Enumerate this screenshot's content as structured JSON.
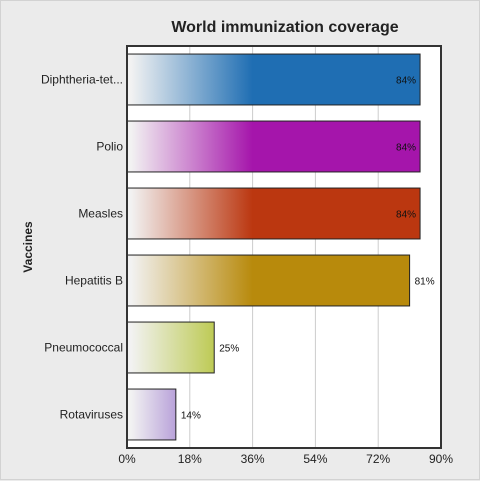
{
  "chart_data": {
    "type": "bar",
    "orientation": "horizontal",
    "title": "World immunization coverage",
    "xlabel": "",
    "ylabel": "Vaccines",
    "xlim": [
      0,
      90
    ],
    "xticks": [
      "0%",
      "18%",
      "36%",
      "54%",
      "72%",
      "90%"
    ],
    "tick_values": [
      0,
      18,
      36,
      54,
      72,
      90
    ],
    "grid": true,
    "categories": [
      "Diphtheria-tet...",
      "Polio",
      "Measles",
      "Hepatitis B",
      "Pneumococcal",
      "Rotaviruses"
    ],
    "values": [
      84,
      84,
      84,
      81,
      25,
      14
    ],
    "data_labels": [
      "84%",
      "84%",
      "84%",
      "81%",
      "25%",
      "14%"
    ],
    "colors": [
      "#1f6eb3",
      "#a515ab",
      "#bb3710",
      "#b88a0c",
      "#a5b80c",
      "#5719b0"
    ]
  }
}
